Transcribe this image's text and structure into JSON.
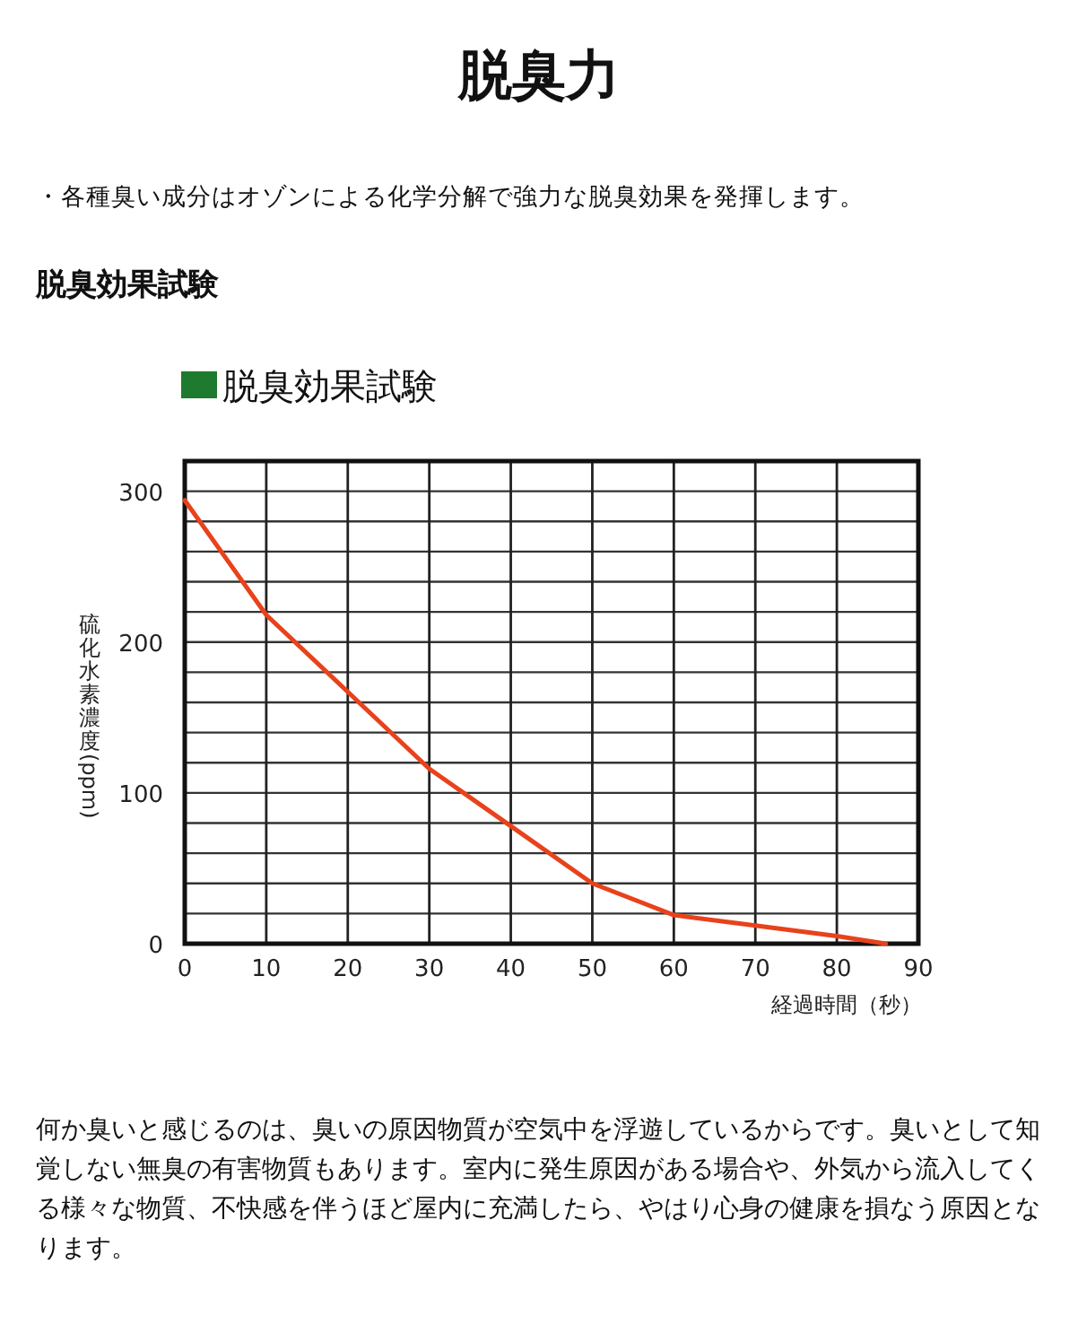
{
  "chart_data": {
    "type": "line",
    "title": "脱臭力",
    "annotations": [
      "・各種臭い成分はオゾンによる化学分解で強力な脱臭効果を発揮します。",
      "脱臭効果試験",
      "脱臭効果試験",
      "何か臭いと感じるのは、臭いの原因物質が空気中を浮遊しているからです。臭いとして知覚しない無臭の有害物質もあります。室内に発生原因がある場合や、外気から流入してくる様々な物質、不快感を伴うほど屋内に充満したら、やはり心身の健康を損なう原因となります。"
    ],
    "xlabel": "経過時間（秒）",
    "ylabel": "硫化水素濃度(ppm)",
    "x": [
      0,
      10,
      20,
      30,
      40,
      50,
      60,
      70,
      80,
      86
    ],
    "series": [
      {
        "color": "#e8421c",
        "values": [
          294,
          218,
          167,
          116,
          78,
          40,
          19,
          12,
          5,
          0
        ]
      }
    ],
    "xlim": [
      0,
      90
    ],
    "xticks": [
      0,
      10,
      20,
      30,
      40,
      50,
      60,
      70,
      80,
      90
    ],
    "ylim": [
      0,
      320
    ],
    "yticks": [
      0,
      {
        "value": 20,
        "label": null
      },
      {
        "value": 40,
        "label": null
      },
      {
        "value": 60,
        "label": null
      },
      {
        "value": 80,
        "label": null
      },
      100,
      {
        "value": 120,
        "label": null
      },
      {
        "value": 140,
        "label": null
      },
      {
        "value": 160,
        "label": null
      },
      {
        "value": 180,
        "label": null
      },
      200,
      {
        "value": 220,
        "label": null
      },
      {
        "value": 240,
        "label": null
      },
      {
        "value": 260,
        "label": null
      },
      {
        "value": 280,
        "label": null
      },
      300,
      {
        "value": 320,
        "label": null
      }
    ],
    "grid": true,
    "marker": "none",
    "line_style": "solid"
  }
}
